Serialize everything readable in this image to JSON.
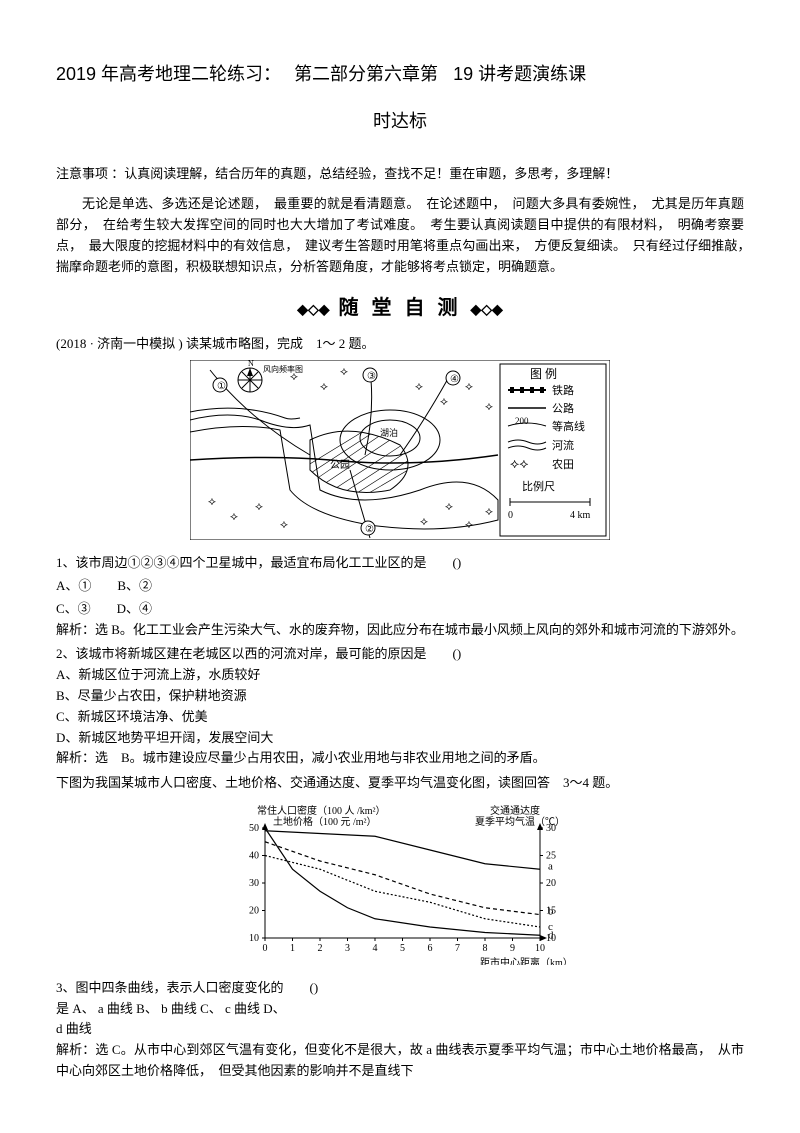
{
  "title_part1": "2019 年高考地理二轮练习：",
  "title_part2": "第二部分第六章第",
  "title_part3": "19 讲考题演练课",
  "subtitle": "时达标",
  "para_note": "注意事项 ：认真阅读理解，结合历年的真题，总结经验，查找不足！重在审题，多思考，多理解！",
  "para_main": "无论是单选、多选还是论述题，　最重要的就是看清题意。　在论述题中，　问题大多具有委婉性，　尤其是历年真题部分，　在给考生较大发挥空间的同时也大大增加了考试难度。　考生要认真阅读题目中提供的有限材料，　明确考察要点，　最大限度的挖掘材料中的有效信息，　建议考生答题时用笔将重点勾画出来，　方便反复细读。　只有经过仔细推敲，　揣摩命题老师的意图，积极联想知识点，分析答题角度，才能够将考点锁定，明确题意。",
  "banner": "随 堂 自 测",
  "pre_q1": "(2018 · 济南一中模拟 ) 读某城市略图，完成　1～ 2 题。",
  "legend": {
    "title": "图 例",
    "items": [
      "铁路",
      "公路",
      "等高线",
      "河流",
      "农田",
      "比例尺"
    ],
    "contour": "200",
    "scale_range": "0　　4 km"
  },
  "map": {
    "labels": [
      "公园",
      "湖泊",
      "N",
      "S",
      "E",
      "W",
      "风向频率图"
    ],
    "satellites": [
      "①",
      "②",
      "③",
      "④"
    ]
  },
  "q1": {
    "stem": "1、该市周边①②③④四个卫星城中，最适宜布局化工工业区的是　　()",
    "opts_line1": "A、①　　B、②",
    "opts_line2": "C、③　　D、④",
    "ans": "解析：选 B。化工工业会产生污染大气、水的废弃物，因此应分布在城市最小风频上风向的郊外和城市河流的下游郊外。"
  },
  "q2": {
    "stem": "2、该城市将新城区建在老城区以西的河流对岸，最可能的原因是　　()",
    "opt_a": "A、新城区位于河流上游，水质较好",
    "opt_b": "B、尽量少占农田，保护耕地资源",
    "opt_c": "C、新城区环境洁净、优美",
    "opt_d": "D、新城区地势平坦开阔，发展空间大",
    "ans": "解析：选　B。城市建设应尽量少占用农田，减小农业用地与非农业用地之间的矛盾。"
  },
  "pre_q34": "下图为我国某城市人口密度、土地价格、交通通达度、夏季平均气温变化图，读图回答　3～4 题。",
  "chart": {
    "type": "line",
    "left_top_label": "常住人口密度（100 人 /km²）",
    "left_sub_label": "土地价格（100 元 /m²）",
    "right_top_label": "交通通达度",
    "right_sub_label": "夏季平均气温（℃）",
    "x_label": "距市中心距离（km）",
    "x_ticks": [
      0,
      1,
      2,
      3,
      4,
      5,
      6,
      7,
      8,
      9,
      10
    ],
    "left_ticks": [
      10,
      20,
      30,
      40,
      50
    ],
    "right_ticks": [
      10,
      15,
      20,
      25,
      30
    ],
    "series_labels": [
      "a",
      "b",
      "c",
      "d"
    ],
    "colors": {
      "axis": "#000",
      "line": "#000",
      "bg": "#ffffff"
    },
    "a": [
      [
        0,
        29.5
      ],
      [
        2,
        29
      ],
      [
        4,
        28.5
      ],
      [
        6,
        26
      ],
      [
        8,
        23.5
      ],
      [
        10,
        22.5
      ]
    ],
    "b": [
      [
        0,
        45
      ],
      [
        2,
        38
      ],
      [
        4,
        33
      ],
      [
        6,
        26
      ],
      [
        8,
        21
      ],
      [
        10,
        18.5
      ]
    ],
    "c": [
      [
        0,
        40
      ],
      [
        2,
        35
      ],
      [
        4,
        27
      ],
      [
        6,
        23
      ],
      [
        8,
        17
      ],
      [
        10,
        14
      ]
    ],
    "d": [
      [
        0,
        50
      ],
      [
        1,
        35
      ],
      [
        2,
        27
      ],
      [
        3,
        21
      ],
      [
        4,
        17
      ],
      [
        6,
        14
      ],
      [
        8,
        12
      ],
      [
        10,
        11
      ]
    ]
  },
  "q3": {
    "stem": "3、图中四条曲线，表示人口密度变化的　　()",
    "opts": "是 A、 a 曲线 B、 b 曲线 C、 c 曲线 D、",
    "opt_last": "d 曲线",
    "ans": "解析：选 C。从市中心到郊区气温有变化，但变化不是很大，故 a 曲线表示夏季平均气温；市中心土地价格最高，　从市中心向郊区土地价格降低，　但受其他因素的影响并不是直线下"
  }
}
